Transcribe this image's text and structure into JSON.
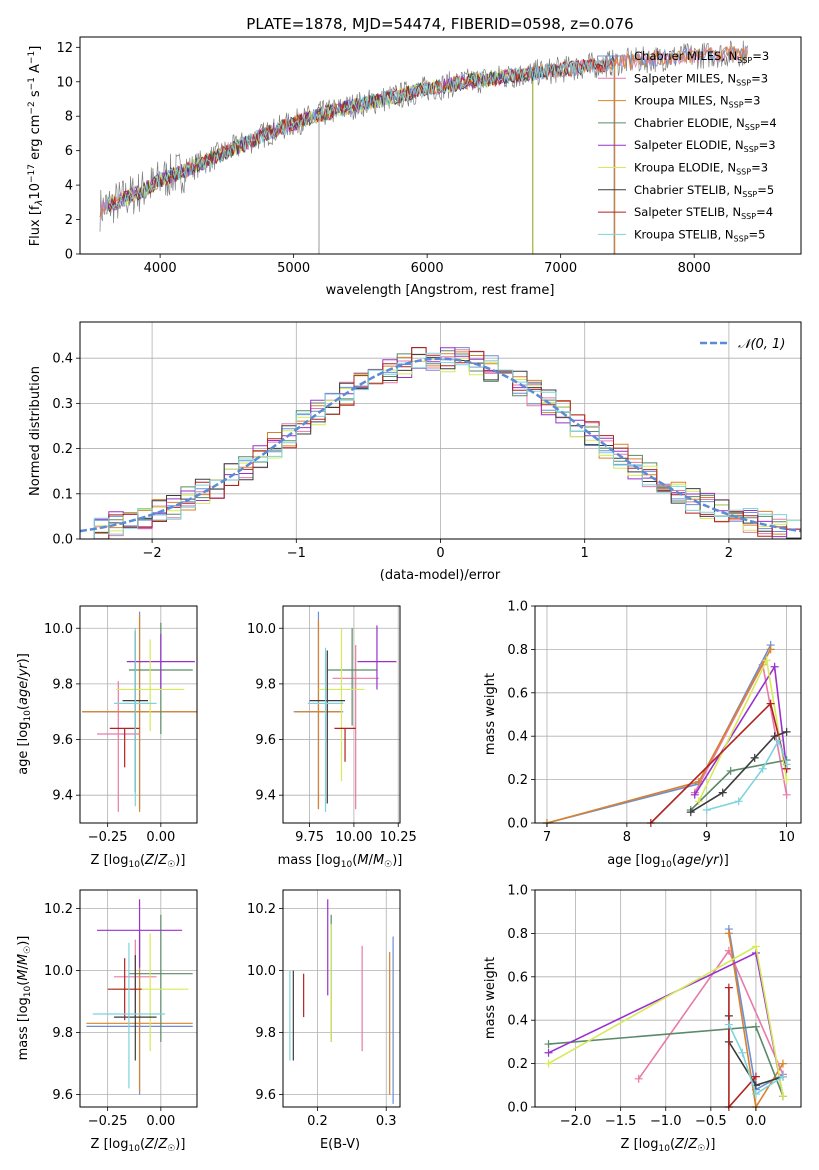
{
  "colors": {
    "Chabrier MILES": "#6a8fd9",
    "Salpeter MILES": "#e87aa8",
    "Kroupa MILES": "#d9822b",
    "Chabrier ELODIE": "#5a8a68",
    "Salpeter ELODIE": "#9932cc",
    "Kroupa ELODIE": "#d6ea5a",
    "Chabrier STELIB": "#3c3c3c",
    "Salpeter STELIB": "#b22222",
    "Kroupa STELIB": "#7ed3dc",
    "data": "#808080",
    "normal": "#5b8bd5"
  },
  "chart_data": [
    {
      "id": "spectrum",
      "type": "line",
      "title": "PLATE=1878, MJD=54474, FIBERID=0598, z=0.076",
      "xlabel": "wavelength [Angstrom, rest frame]",
      "ylabel": "Flux [f",
      "ylabel_full": "Flux [fλ10⁻¹⁷ erg cm⁻² s⁻¹ A⁻¹]",
      "xlim": [
        3400,
        8800
      ],
      "ylim": [
        0,
        12.6
      ],
      "xticks": [
        "4000",
        "5000",
        "6000",
        "7000",
        "8000"
      ],
      "yticks": [
        "0",
        "2",
        "4",
        "6",
        "8",
        "10",
        "12"
      ],
      "continuum": [
        [
          3550,
          2.6
        ],
        [
          3700,
          3.1
        ],
        [
          3900,
          3.8
        ],
        [
          4000,
          4.3
        ],
        [
          4200,
          4.9
        ],
        [
          4400,
          5.6
        ],
        [
          4600,
          6.3
        ],
        [
          4800,
          7.0
        ],
        [
          5000,
          7.6
        ],
        [
          5200,
          8.1
        ],
        [
          5500,
          8.7
        ],
        [
          5800,
          9.2
        ],
        [
          6000,
          9.6
        ],
        [
          6300,
          10.0
        ],
        [
          6600,
          10.3
        ],
        [
          7000,
          10.7
        ],
        [
          7400,
          11.1
        ],
        [
          7800,
          11.4
        ],
        [
          8400,
          11.7
        ]
      ],
      "legend": [
        {
          "label": "Chabrier MILES, N",
          "nssp": "3",
          "color_key": "Chabrier MILES"
        },
        {
          "label": "Salpeter MILES, N",
          "nssp": "3",
          "color_key": "Salpeter MILES"
        },
        {
          "label": "Kroupa MILES, N",
          "nssp": "3",
          "color_key": "Kroupa MILES"
        },
        {
          "label": "Chabrier ELODIE, N",
          "nssp": "4",
          "color_key": "Chabrier ELODIE"
        },
        {
          "label": "Salpeter ELODIE, N",
          "nssp": "3",
          "color_key": "Salpeter ELODIE"
        },
        {
          "label": "Kroupa ELODIE, N",
          "nssp": "3",
          "color_key": "Kroupa ELODIE"
        },
        {
          "label": "Chabrier STELIB, N",
          "nssp": "5",
          "color_key": "Chabrier STELIB"
        },
        {
          "label": "Salpeter STELIB, N",
          "nssp": "4",
          "color_key": "Salpeter STELIB"
        },
        {
          "label": "Kroupa STELIB, N",
          "nssp": "5",
          "color_key": "Kroupa STELIB"
        }
      ],
      "legend_sub": "SSP"
    },
    {
      "id": "residuals",
      "type": "line",
      "xlabel": "(data-model)/error",
      "ylabel": "Normed distribution",
      "xlim": [
        -2.5,
        2.5
      ],
      "ylim": [
        0,
        0.48
      ],
      "xticks": [
        "−2",
        "−1",
        "0",
        "1",
        "2"
      ],
      "yticks": [
        "0.0",
        "0.1",
        "0.2",
        "0.3",
        "0.4"
      ],
      "legend": "𝒩(0, 1)",
      "bin_width": 0.1
    },
    {
      "id": "age-vs-Z",
      "type": "scatter",
      "xlabel": "Z [log₁₀(Z/Z☉)]",
      "ylabel": "age  [log₁₀(age/yr)]",
      "xlim": [
        -0.38,
        0.17
      ],
      "ylim": [
        9.3,
        10.08
      ],
      "xticks": [
        "−0.25",
        "0.00"
      ],
      "yticks": [
        "9.4",
        "9.6",
        "9.8",
        "10.0"
      ],
      "points": [
        {
          "key": "Chabrier MILES",
          "x": -0.1,
          "xerr": 0.27,
          "y": 9.7,
          "yerr": [
            0.35,
            0.36
          ]
        },
        {
          "key": "Salpeter MILES",
          "x": -0.2,
          "xerr": 0.1,
          "y": 9.62,
          "yerr": [
            0.28,
            0.19
          ]
        },
        {
          "key": "Kroupa MILES",
          "x": -0.1,
          "xerr": 0.27,
          "y": 9.7,
          "yerr": [
            0.36,
            0.35
          ]
        },
        {
          "key": "Chabrier ELODIE",
          "x": 0.0,
          "xerr": 0.15,
          "y": 9.85,
          "yerr": [
            0.23,
            0.17
          ]
        },
        {
          "key": "Salpeter ELODIE",
          "x": 0.0,
          "xerr": 0.16,
          "y": 9.88,
          "yerr": [
            0.1,
            0.1
          ]
        },
        {
          "key": "Kroupa ELODIE",
          "x": -0.05,
          "xerr": 0.16,
          "y": 9.78,
          "yerr": [
            0.15,
            0.18
          ]
        },
        {
          "key": "Chabrier STELIB",
          "x": -0.12,
          "xerr": 0.06,
          "y": 9.74,
          "yerr": [
            0.33,
            0.25
          ]
        },
        {
          "key": "Salpeter STELIB",
          "x": -0.17,
          "xerr": 0.07,
          "y": 9.64,
          "yerr": [
            0.14,
            0.0
          ]
        },
        {
          "key": "Kroupa STELIB",
          "x": -0.12,
          "xerr": 0.1,
          "y": 9.73,
          "yerr": [
            0.37,
            0.27
          ]
        }
      ]
    },
    {
      "id": "age-vs-mass",
      "type": "scatter",
      "xlabel": "mass [log₁₀(M/M☉)]",
      "xlim": [
        9.6,
        10.26
      ],
      "ylim": [
        9.3,
        10.08
      ],
      "xticks": [
        "9.75",
        "10.00",
        "10.25"
      ],
      "yticks": [
        "9.4",
        "9.6",
        "9.8",
        "10.0"
      ],
      "points": [
        {
          "key": "Chabrier MILES",
          "x": 9.8,
          "xerr": 0.14,
          "y": 9.7,
          "yerr": [
            0.35,
            0.36
          ]
        },
        {
          "key": "Salpeter MILES",
          "x": 10.01,
          "xerr": 0.13,
          "y": 9.82,
          "yerr": [
            0.47,
            0.12
          ]
        },
        {
          "key": "Kroupa MILES",
          "x": 9.8,
          "xerr": 0.13,
          "y": 9.7,
          "yerr": [
            0.35,
            0.33
          ]
        },
        {
          "key": "Chabrier ELODIE",
          "x": 9.99,
          "xerr": 0.14,
          "y": 9.85,
          "yerr": [
            0.2,
            0.15
          ]
        },
        {
          "key": "Salpeter ELODIE",
          "x": 10.13,
          "xerr": 0.11,
          "y": 9.88,
          "yerr": [
            0.1,
            0.13
          ]
        },
        {
          "key": "Kroupa ELODIE",
          "x": 9.93,
          "xerr": 0.13,
          "y": 9.78,
          "yerr": [
            0.33,
            0.22
          ]
        },
        {
          "key": "Chabrier STELIB",
          "x": 9.85,
          "xerr": 0.1,
          "y": 9.74,
          "yerr": [
            0.37,
            0.18
          ]
        },
        {
          "key": "Salpeter STELIB",
          "x": 9.95,
          "xerr": 0.06,
          "y": 9.64,
          "yerr": [
            0.12,
            0.0
          ]
        },
        {
          "key": "Kroupa STELIB",
          "x": 9.84,
          "xerr": 0.1,
          "y": 9.73,
          "yerr": [
            0.39,
            0.2
          ]
        }
      ]
    },
    {
      "id": "weight-vs-age",
      "type": "line",
      "xlabel": "age  [log₁₀(age/yr)]",
      "ylabel": "mass weight",
      "xlim": [
        6.85,
        10.18
      ],
      "ylim": [
        0,
        1.0
      ],
      "xticks": [
        "7",
        "8",
        "9",
        "10"
      ],
      "yticks": [
        "0.0",
        "0.2",
        "0.4",
        "0.6",
        "0.8",
        "1.0"
      ],
      "series": [
        {
          "key": "Chabrier MILES",
          "x": [
            7.0,
            8.9,
            9.8
          ],
          "y": [
            0.0,
            0.18,
            0.82
          ]
        },
        {
          "key": "Salpeter MILES",
          "x": [
            8.85,
            9.7,
            10.0
          ],
          "y": [
            0.14,
            0.73,
            0.13
          ]
        },
        {
          "key": "Kroupa MILES",
          "x": [
            7.0,
            8.9,
            9.8
          ],
          "y": [
            0.0,
            0.19,
            0.8
          ]
        },
        {
          "key": "Chabrier ELODIE",
          "x": [
            8.8,
            9.3,
            10.0
          ],
          "y": [
            0.06,
            0.24,
            0.29
          ]
        },
        {
          "key": "Salpeter ELODIE",
          "x": [
            8.85,
            9.85,
            10.0
          ],
          "y": [
            0.13,
            0.72,
            0.25
          ]
        },
        {
          "key": "Kroupa ELODIE",
          "x": [
            8.9,
            9.75,
            10.0
          ],
          "y": [
            0.1,
            0.75,
            0.2
          ]
        },
        {
          "key": "Chabrier STELIB",
          "x": [
            8.8,
            9.2,
            9.6,
            9.85,
            10.0
          ],
          "y": [
            0.05,
            0.14,
            0.3,
            0.4,
            0.42
          ]
        },
        {
          "key": "Salpeter STELIB",
          "x": [
            8.3,
            9.8,
            10.0
          ],
          "y": [
            0.0,
            0.55,
            0.25
          ]
        },
        {
          "key": "Kroupa STELIB",
          "x": [
            9.0,
            9.4,
            9.7,
            9.9,
            10.0
          ],
          "y": [
            0.06,
            0.1,
            0.25,
            0.38,
            0.27
          ]
        }
      ]
    },
    {
      "id": "mass-vs-Z",
      "type": "scatter",
      "xlabel": "Z [log₁₀(Z/Z☉)]",
      "ylabel": "mass [log₁₀(M/M☉)]",
      "xlim": [
        -0.38,
        0.17
      ],
      "ylim": [
        9.56,
        10.26
      ],
      "xticks": [
        "−0.25",
        "0.00"
      ],
      "yticks": [
        "9.6",
        "9.8",
        "10.0",
        "10.2"
      ],
      "points": [
        {
          "key": "Chabrier MILES",
          "x": -0.1,
          "xerr": 0.25,
          "y": 9.82,
          "yerr": [
            0.22,
            0.31
          ]
        },
        {
          "key": "Salpeter MILES",
          "x": -0.12,
          "xerr": 0.1,
          "y": 9.98,
          "yerr": [
            0.13,
            0.12
          ]
        },
        {
          "key": "Kroupa MILES",
          "x": -0.1,
          "xerr": 0.25,
          "y": 9.83,
          "yerr": [
            0.22,
            0.29
          ]
        },
        {
          "key": "Chabrier ELODIE",
          "x": 0.0,
          "xerr": 0.15,
          "y": 9.99,
          "yerr": [
            0.22,
            0.19
          ]
        },
        {
          "key": "Salpeter ELODIE",
          "x": -0.1,
          "xerr": 0.2,
          "y": 10.13,
          "yerr": [
            0.12,
            0.1
          ]
        },
        {
          "key": "Kroupa ELODIE",
          "x": -0.05,
          "xerr": 0.18,
          "y": 9.94,
          "yerr": [
            0.2,
            0.18
          ]
        },
        {
          "key": "Chabrier STELIB",
          "x": -0.12,
          "xerr": 0.1,
          "y": 9.85,
          "yerr": [
            0.14,
            0.2
          ]
        },
        {
          "key": "Salpeter STELIB",
          "x": -0.17,
          "xerr": 0.08,
          "y": 9.94,
          "yerr": [
            0.1,
            0.1
          ]
        },
        {
          "key": "Kroupa STELIB",
          "x": -0.15,
          "xerr": 0.17,
          "y": 9.86,
          "yerr": [
            0.24,
            0.23
          ]
        }
      ]
    },
    {
      "id": "mass-vs-EBV",
      "type": "scatter",
      "xlabel": "E(B-V)",
      "xlim": [
        0.15,
        0.32
      ],
      "ylim": [
        9.56,
        10.26
      ],
      "xticks": [
        "0.1",
        "0.2",
        "0.3"
      ],
      "yticks": [
        "9.6",
        "9.8",
        "10.0",
        "10.2"
      ],
      "points": [
        {
          "key": "Chabrier MILES",
          "x": 0.31,
          "y": 9.85,
          "yerr": [
            0.28,
            0.26
          ]
        },
        {
          "key": "Salpeter MILES",
          "x": 0.265,
          "y": 9.92,
          "yerr": [
            0.18,
            0.16
          ]
        },
        {
          "key": "Kroupa MILES",
          "x": 0.305,
          "y": 9.84,
          "yerr": [
            0.24,
            0.22
          ]
        },
        {
          "key": "Chabrier ELODIE",
          "x": 0.22,
          "y": 10.0,
          "yerr": [
            0.23,
            0.18
          ]
        },
        {
          "key": "Salpeter ELODIE",
          "x": 0.215,
          "y": 10.05,
          "yerr": [
            0.13,
            0.18
          ]
        },
        {
          "key": "Kroupa ELODIE",
          "x": 0.22,
          "y": 9.95,
          "yerr": [
            0.18,
            0.2
          ]
        },
        {
          "key": "Chabrier STELIB",
          "x": 0.165,
          "y": 9.87,
          "yerr": [
            0.16,
            0.13
          ]
        },
        {
          "key": "Salpeter STELIB",
          "x": 0.18,
          "y": 9.92,
          "yerr": [
            0.07,
            0.07
          ]
        },
        {
          "key": "Kroupa STELIB",
          "x": 0.16,
          "y": 9.86,
          "yerr": [
            0.15,
            0.14
          ]
        }
      ]
    },
    {
      "id": "weight-vs-Z",
      "type": "line",
      "xlabel": "Z [log₁₀(Z/Z☉)]",
      "ylabel": "mass weight",
      "xlim": [
        -2.45,
        0.5
      ],
      "ylim": [
        0,
        1.0
      ],
      "xticks": [
        "−2.0",
        "−1.5",
        "−1.0",
        "−0.5",
        "0.0"
      ],
      "yticks": [
        "0.0",
        "0.2",
        "0.4",
        "0.6",
        "0.8",
        "1.0"
      ],
      "series": [
        {
          "key": "Chabrier MILES",
          "x": [
            -0.3,
            0.0,
            0.3
          ],
          "y": [
            0.82,
            0.08,
            0.15
          ]
        },
        {
          "key": "Salpeter MILES",
          "x": [
            -1.3,
            -0.3,
            0.3
          ],
          "y": [
            0.13,
            0.72,
            0.15
          ]
        },
        {
          "key": "Kroupa MILES",
          "x": [
            -0.3,
            0.0,
            0.3
          ],
          "y": [
            0.8,
            0.0,
            0.2
          ]
        },
        {
          "key": "Chabrier ELODIE",
          "x": [
            -2.3,
            0.0,
            0.3
          ],
          "y": [
            0.29,
            0.37,
            0.05
          ]
        },
        {
          "key": "Salpeter ELODIE",
          "x": [
            -2.3,
            0.0,
            0.3
          ],
          "y": [
            0.25,
            0.71,
            0.05
          ]
        },
        {
          "key": "Kroupa ELODIE",
          "x": [
            -2.3,
            0.0,
            0.3
          ],
          "y": [
            0.2,
            0.74,
            0.05
          ]
        },
        {
          "key": "Chabrier STELIB",
          "x": [
            -0.3,
            -0.3,
            0.0,
            0.3
          ],
          "y": [
            0.42,
            0.3,
            0.1,
            0.14
          ]
        },
        {
          "key": "Salpeter STELIB",
          "x": [
            -0.3,
            -0.3,
            0.0
          ],
          "y": [
            0.55,
            0.0,
            0.14
          ]
        },
        {
          "key": "Kroupa STELIB",
          "x": [
            -0.3,
            -0.15,
            0.0,
            0.3
          ],
          "y": [
            0.38,
            0.25,
            0.06,
            0.14
          ]
        }
      ]
    }
  ]
}
